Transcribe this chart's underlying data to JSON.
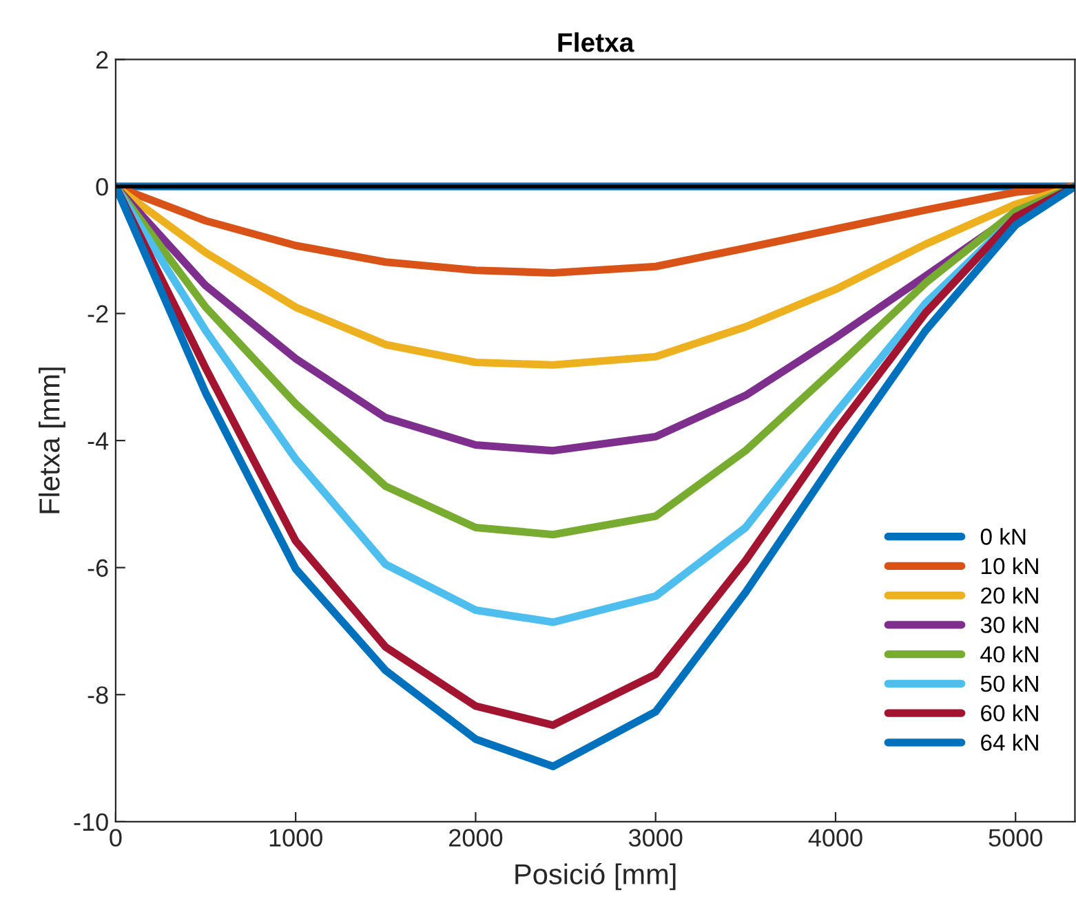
{
  "chart_data": {
    "type": "line",
    "title": "Fletxa",
    "xlabel": "Posició [mm]",
    "ylabel": "Fletxa [mm]",
    "x": [
      0,
      500,
      1000,
      1500,
      2000,
      2430,
      3000,
      3500,
      4000,
      4500,
      5000,
      5330
    ],
    "series": [
      {
        "name": "0 kN",
        "color": "#0072bd",
        "values": [
          0,
          0,
          0,
          0,
          0,
          0,
          0,
          0,
          0,
          0,
          0,
          0
        ]
      },
      {
        "name": "10 kN",
        "color": "#d95319",
        "values": [
          0,
          -0.54,
          -0.93,
          -1.19,
          -1.32,
          -1.36,
          -1.26,
          -0.97,
          -0.67,
          -0.37,
          -0.09,
          0
        ]
      },
      {
        "name": "20 kN",
        "color": "#edb120",
        "values": [
          0,
          -1.04,
          -1.9,
          -2.49,
          -2.77,
          -2.81,
          -2.68,
          -2.21,
          -1.62,
          -0.91,
          -0.28,
          0
        ]
      },
      {
        "name": "30 kN",
        "color": "#7e2f8e",
        "values": [
          0,
          -1.56,
          -2.71,
          -3.64,
          -4.07,
          -4.16,
          -3.94,
          -3.29,
          -2.38,
          -1.41,
          -0.43,
          0
        ]
      },
      {
        "name": "40 kN",
        "color": "#77ac30",
        "values": [
          0,
          -1.9,
          -3.42,
          -4.72,
          -5.37,
          -5.48,
          -5.19,
          -4.16,
          -2.86,
          -1.52,
          -0.39,
          0
        ]
      },
      {
        "name": "50 kN",
        "color": "#4dbeee",
        "values": [
          0,
          -2.27,
          -4.29,
          -5.95,
          -6.67,
          -6.86,
          -6.45,
          -5.37,
          -3.57,
          -1.84,
          -0.48,
          0
        ]
      },
      {
        "name": "60 kN",
        "color": "#a2142f",
        "values": [
          0,
          -2.86,
          -5.58,
          -7.25,
          -8.18,
          -8.48,
          -7.68,
          -5.89,
          -3.85,
          -1.99,
          -0.48,
          0
        ]
      },
      {
        "name": "64 kN",
        "color": "#0072bd",
        "values": [
          0,
          -3.25,
          -6.02,
          -7.62,
          -8.7,
          -9.13,
          -8.27,
          -6.39,
          -4.29,
          -2.27,
          -0.61,
          0
        ]
      }
    ],
    "xlim": [
      0,
      5330
    ],
    "xticks": [
      0,
      1000,
      2000,
      3000,
      4000,
      5000
    ],
    "ylim": [
      -10,
      2
    ],
    "yticks": [
      -10,
      -8,
      -6,
      -4,
      -2,
      0,
      2
    ],
    "ref_lines": [
      {
        "axis": "y",
        "value": 0,
        "color": "#000000"
      }
    ],
    "legend": "lower right",
    "grid": false,
    "marker": "none",
    "line_style": "solid"
  }
}
